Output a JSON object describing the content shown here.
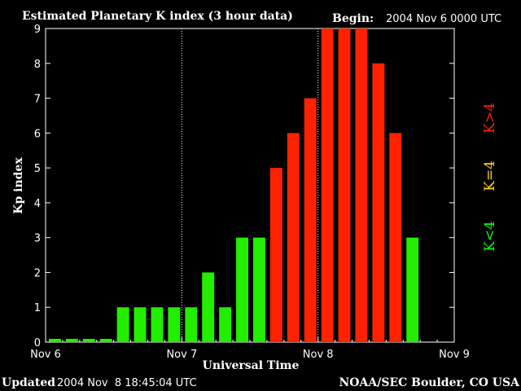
{
  "header": {
    "title": "Estimated Planetary K index (3 hour data)",
    "begin_label": "Begin:",
    "begin_value": "2004 Nov 6 0000 UTC"
  },
  "footer": {
    "updated_label": "Updated",
    "updated_value": "2004 Nov  8 18:45:04 UTC",
    "source": "NOAA/SEC Boulder, CO USA"
  },
  "legend": {
    "items": [
      {
        "label": "K<4",
        "color": "#00ff00"
      },
      {
        "label": "K=4",
        "color": "#ffd700"
      },
      {
        "label": "K>4",
        "color": "#ff2200"
      }
    ]
  },
  "colors": {
    "below": "#22ee00",
    "equal": "#ffd700",
    "above": "#ff2200",
    "axis": "#ffffff",
    "background": "#000000"
  },
  "chart_data": {
    "type": "bar",
    "title": "Estimated Planetary K index (3 hour data)",
    "xlabel": "Universal Time",
    "ylabel": "Kp index",
    "ylim": [
      0,
      9
    ],
    "yticks": [
      0,
      1,
      2,
      3,
      4,
      5,
      6,
      7,
      8,
      9
    ],
    "xticks": [
      "Nov 6",
      "Nov 7",
      "Nov 8",
      "Nov 9"
    ],
    "intervals_per_day": 8,
    "day_count": 3,
    "values": [
      0,
      0,
      0,
      0,
      1,
      1,
      1,
      1,
      1,
      2,
      1,
      3,
      3,
      5,
      6,
      7,
      9,
      9,
      9,
      8,
      6,
      3
    ],
    "threshold": 4,
    "day_dividers": [
      "Nov 7",
      "Nov 8"
    ],
    "grid": false
  }
}
